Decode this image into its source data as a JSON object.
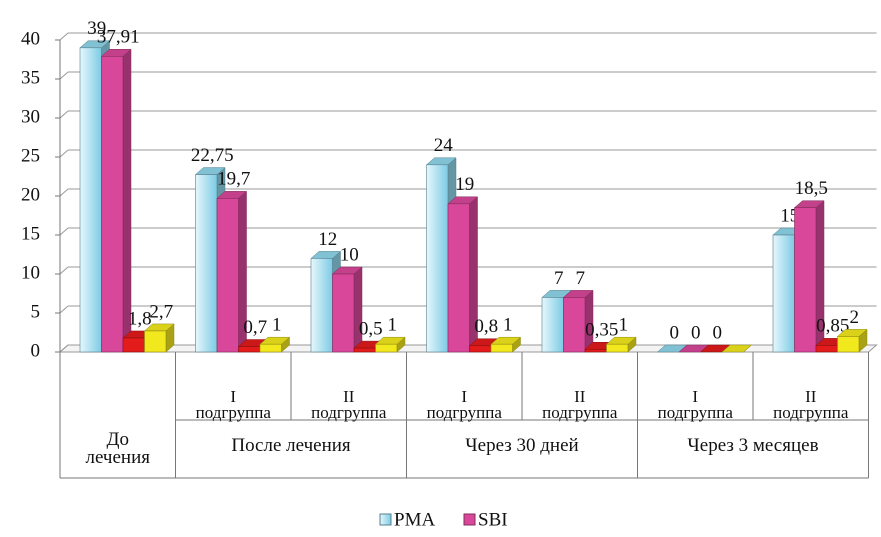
{
  "chart_data": {
    "type": "bar3d",
    "groups": [
      {
        "label": "До лечения"
      },
      {
        "label": "После лечения",
        "subgroups": [
          "I подгруппа",
          "II подгруппа"
        ]
      },
      {
        "label": "Через 30 дней",
        "subgroups": [
          "I подгруппа",
          "II подгруппа"
        ]
      },
      {
        "label": "Через 3 месяцев",
        "subgroups": [
          "I подгруппа",
          "II подгруппа"
        ]
      }
    ],
    "series": [
      {
        "name": "PMA",
        "color": "#8fd6ec",
        "values": [
          39,
          22.75,
          12,
          24,
          7,
          0,
          15
        ],
        "value_labels": [
          "39",
          "22,75",
          "12",
          "24",
          "7",
          "0",
          "15"
        ]
      },
      {
        "name": "SBI",
        "color": "#d9479a",
        "values": [
          37.91,
          19.7,
          10,
          19,
          7,
          0,
          18.5
        ],
        "value_labels": [
          "37,91",
          "19,7",
          "10",
          "19",
          "7",
          "0",
          "18,5"
        ]
      },
      {
        "color": "#e31b1b",
        "values": [
          1.8,
          0.7,
          0.5,
          0.8,
          0.35,
          0,
          0.85
        ],
        "value_labels": [
          "1,8",
          "0,7",
          "0,5",
          "0,8",
          "0,35",
          "0",
          "0,85"
        ]
      },
      {
        "color": "#f2e81e",
        "values": [
          2.7,
          1,
          1,
          1,
          1,
          0,
          2
        ],
        "value_labels": [
          "2,7",
          "1",
          "1",
          "1",
          "1",
          null,
          "2"
        ]
      }
    ],
    "ylim": [
      0,
      40
    ],
    "yticks": [
      0,
      5,
      10,
      15,
      20,
      25,
      30,
      35,
      40
    ],
    "grid": true,
    "legend": "bottom"
  }
}
